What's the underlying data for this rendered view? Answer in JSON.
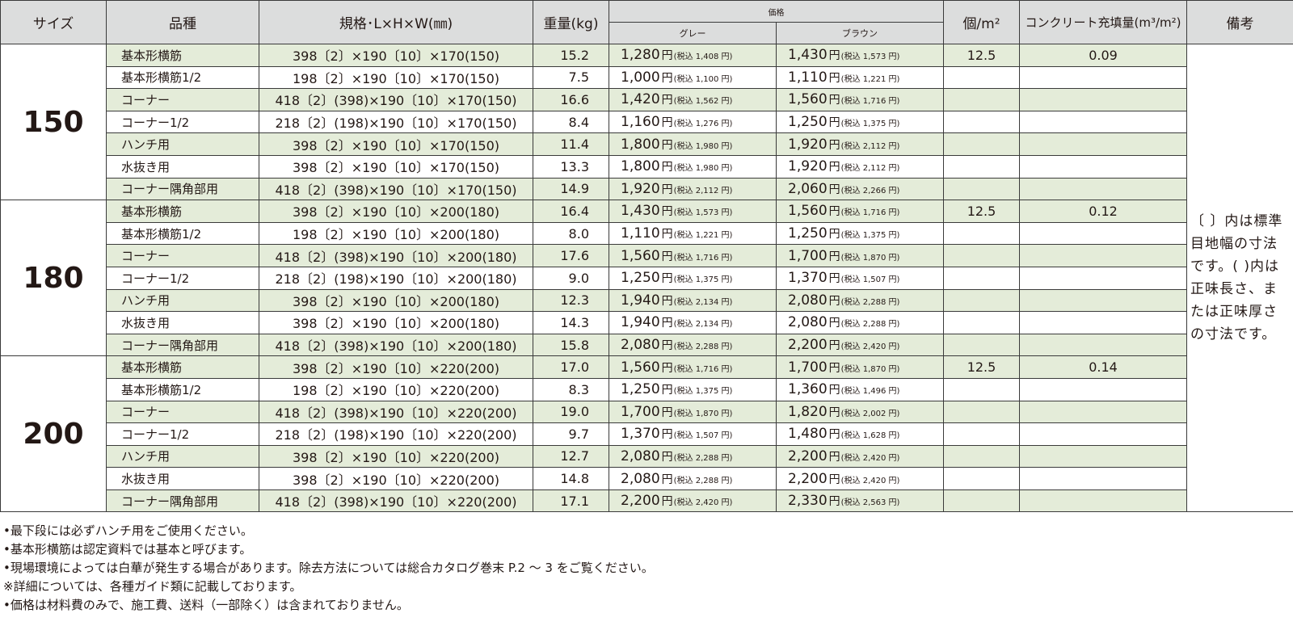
{
  "headers": {
    "size": "サイズ",
    "type": "品種",
    "spec": "規格･L×H×W(㎜)",
    "weight": "重量(kg)",
    "price": "価格",
    "gray": "グレー",
    "brown": "ブラウン",
    "pcs": "個/m²",
    "fill": "コンクリート充填量(m³/m²)",
    "note": "備考"
  },
  "groups": [
    {
      "size": "150",
      "pcs": "12.5",
      "fill": "0.09",
      "rows": [
        {
          "name": "基本形横筋",
          "spec": "398〔2〕×190〔10〕×170(150)",
          "weight": "15.2",
          "gray": "1,280",
          "gray_tax": "(税込 1,408 円)",
          "brown": "1,430",
          "brown_tax": "(税込 1,573 円)"
        },
        {
          "name": "基本形横筋1/2",
          "spec": "198〔2〕×190〔10〕×170(150)",
          "weight": "7.5",
          "gray": "1,000",
          "gray_tax": "(税込 1,100 円)",
          "brown": "1,110",
          "brown_tax": "(税込 1,221 円)"
        },
        {
          "name": "コーナー",
          "spec": "418〔2〕(398)×190〔10〕×170(150)",
          "weight": "16.6",
          "gray": "1,420",
          "gray_tax": "(税込 1,562 円)",
          "brown": "1,560",
          "brown_tax": "(税込 1,716 円)"
        },
        {
          "name": "コーナー1/2",
          "spec": "218〔2〕(198)×190〔10〕×170(150)",
          "weight": "8.4",
          "gray": "1,160",
          "gray_tax": "(税込 1,276 円)",
          "brown": "1,250",
          "brown_tax": "(税込 1,375 円)"
        },
        {
          "name": "ハンチ用",
          "spec": "398〔2〕×190〔10〕×170(150)",
          "weight": "11.4",
          "gray": "1,800",
          "gray_tax": "(税込 1,980 円)",
          "brown": "1,920",
          "brown_tax": "(税込 2,112 円)"
        },
        {
          "name": "水抜き用",
          "spec": "398〔2〕×190〔10〕×170(150)",
          "weight": "13.3",
          "gray": "1,800",
          "gray_tax": "(税込 1,980 円)",
          "brown": "1,920",
          "brown_tax": "(税込 2,112 円)"
        },
        {
          "name": "コーナー隅角部用",
          "spec": "418〔2〕(398)×190〔10〕×170(150)",
          "weight": "14.9",
          "gray": "1,920",
          "gray_tax": "(税込 2,112 円)",
          "brown": "2,060",
          "brown_tax": "(税込 2,266 円)"
        }
      ]
    },
    {
      "size": "180",
      "pcs": "12.5",
      "fill": "0.12",
      "rows": [
        {
          "name": "基本形横筋",
          "spec": "398〔2〕×190〔10〕×200(180)",
          "weight": "16.4",
          "gray": "1,430",
          "gray_tax": "(税込 1,573 円)",
          "brown": "1,560",
          "brown_tax": "(税込 1,716 円)"
        },
        {
          "name": "基本形横筋1/2",
          "spec": "198〔2〕×190〔10〕×200(180)",
          "weight": "8.0",
          "gray": "1,110",
          "gray_tax": "(税込 1,221 円)",
          "brown": "1,250",
          "brown_tax": "(税込 1,375 円)"
        },
        {
          "name": "コーナー",
          "spec": "418〔2〕(398)×190〔10〕×200(180)",
          "weight": "17.6",
          "gray": "1,560",
          "gray_tax": "(税込 1,716 円)",
          "brown": "1,700",
          "brown_tax": "(税込 1,870 円)"
        },
        {
          "name": "コーナー1/2",
          "spec": "218〔2〕(198)×190〔10〕×200(180)",
          "weight": "9.0",
          "gray": "1,250",
          "gray_tax": "(税込 1,375 円)",
          "brown": "1,370",
          "brown_tax": "(税込 1,507 円)"
        },
        {
          "name": "ハンチ用",
          "spec": "398〔2〕×190〔10〕×200(180)",
          "weight": "12.3",
          "gray": "1,940",
          "gray_tax": "(税込 2,134 円)",
          "brown": "2,080",
          "brown_tax": "(税込 2,288 円)"
        },
        {
          "name": "水抜き用",
          "spec": "398〔2〕×190〔10〕×200(180)",
          "weight": "14.3",
          "gray": "1,940",
          "gray_tax": "(税込 2,134 円)",
          "brown": "2,080",
          "brown_tax": "(税込 2,288 円)"
        },
        {
          "name": "コーナー隅角部用",
          "spec": "418〔2〕(398)×190〔10〕×200(180)",
          "weight": "15.8",
          "gray": "2,080",
          "gray_tax": "(税込 2,288 円)",
          "brown": "2,200",
          "brown_tax": "(税込 2,420 円)"
        }
      ]
    },
    {
      "size": "200",
      "pcs": "12.5",
      "fill": "0.14",
      "rows": [
        {
          "name": "基本形横筋",
          "spec": "398〔2〕×190〔10〕×220(200)",
          "weight": "17.0",
          "gray": "1,560",
          "gray_tax": "(税込 1,716 円)",
          "brown": "1,700",
          "brown_tax": "(税込 1,870 円)"
        },
        {
          "name": "基本形横筋1/2",
          "spec": "198〔2〕×190〔10〕×220(200)",
          "weight": "8.3",
          "gray": "1,250",
          "gray_tax": "(税込 1,375 円)",
          "brown": "1,360",
          "brown_tax": "(税込 1,496 円)"
        },
        {
          "name": "コーナー",
          "spec": "418〔2〕(398)×190〔10〕×220(200)",
          "weight": "19.0",
          "gray": "1,700",
          "gray_tax": "(税込 1,870 円)",
          "brown": "1,820",
          "brown_tax": "(税込 2,002 円)"
        },
        {
          "name": "コーナー1/2",
          "spec": "218〔2〕(198)×190〔10〕×220(200)",
          "weight": "9.7",
          "gray": "1,370",
          "gray_tax": "(税込 1,507 円)",
          "brown": "1,480",
          "brown_tax": "(税込 1,628 円)"
        },
        {
          "name": "ハンチ用",
          "spec": "398〔2〕×190〔10〕×220(200)",
          "weight": "12.7",
          "gray": "2,080",
          "gray_tax": "(税込 2,288 円)",
          "brown": "2,200",
          "brown_tax": "(税込 2,420 円)"
        },
        {
          "name": "水抜き用",
          "spec": "398〔2〕×190〔10〕×220(200)",
          "weight": "14.8",
          "gray": "2,080",
          "gray_tax": "(税込 2,288 円)",
          "brown": "2,200",
          "brown_tax": "(税込 2,420 円)"
        },
        {
          "name": "コーナー隅角部用",
          "spec": "418〔2〕(398)×190〔10〕×220(200)",
          "weight": "17.1",
          "gray": "2,200",
          "gray_tax": "(税込 2,420 円)",
          "brown": "2,330",
          "brown_tax": "(税込 2,563 円)"
        }
      ]
    }
  ],
  "yen": "円",
  "note": "〔 〕内は標準目地幅の寸法です。( )内は正味長さ、または正味厚さの寸法です。",
  "footnotes": [
    "•最下段には必ずハンチ用をご使用ください。",
    "•基本形横筋は認定資料では基本と呼びます。",
    "•現場環境によっては白華が発生する場合があります。除去方法については総合カタログ巻末 P.2 ～ 3 をご覧ください。",
    "※詳細については、各種ガイド類に記載しております。",
    "•価格は材料費のみで、施工費、送料（一部除く）は含まれておりません。"
  ],
  "colors": {
    "row_green": "#e4ecd9",
    "header_gray": "#dcdddd"
  }
}
